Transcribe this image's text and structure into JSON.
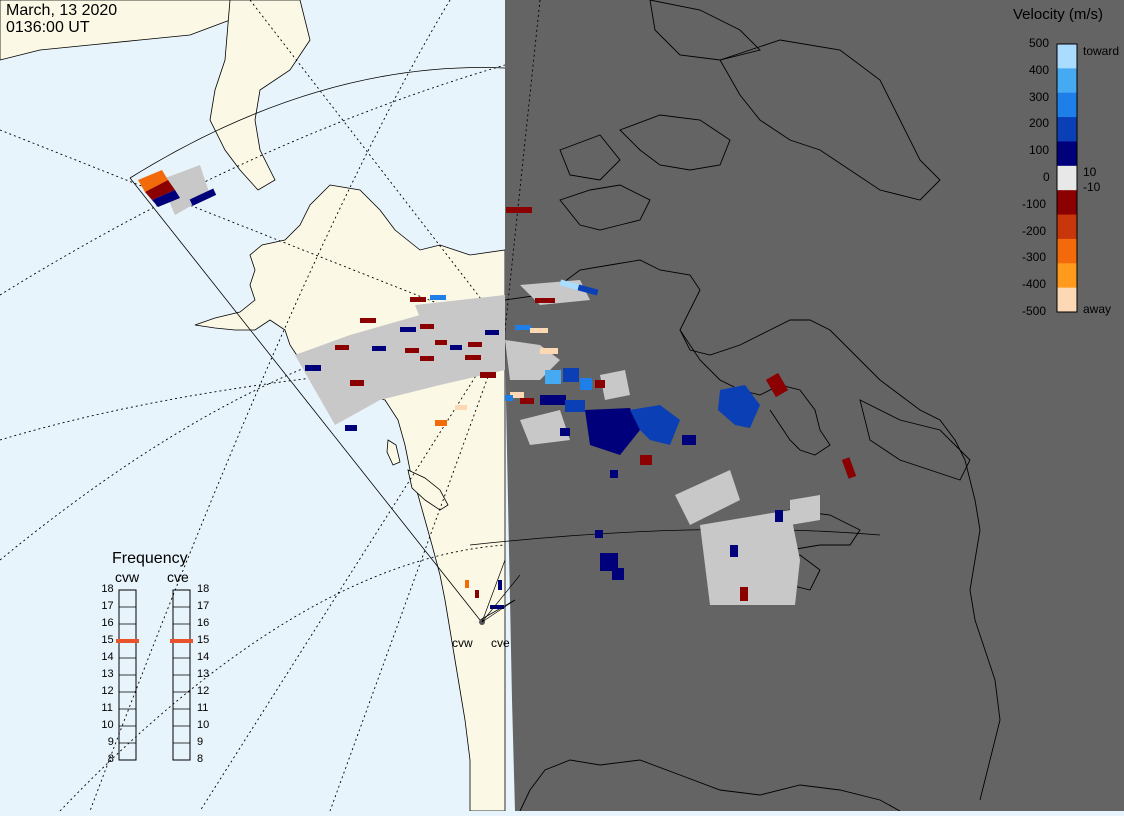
{
  "header": {
    "date": "March, 13 2020",
    "time": "0136:00 UT"
  },
  "colorbar": {
    "title": "Velocity (m/s)",
    "values": [
      "500",
      "400",
      "300",
      "200",
      "100",
      "0",
      "-100",
      "-200",
      "-300",
      "-400",
      "-500"
    ],
    "extra_labels": [
      "10",
      "-10"
    ],
    "toward_label": "toward",
    "away_label": "away",
    "colors": [
      "#fdd8b5",
      "#ff9a1c",
      "#f26a0a",
      "#c8360c",
      "#8b0000",
      "#e8e8e8",
      "#00007a",
      "#0a3fb5",
      "#1f7fe8",
      "#45aaf2",
      "#a9dcff"
    ]
  },
  "frequency": {
    "title": "Frequency",
    "radars": [
      {
        "name": "cvw",
        "value_mhz": 15
      },
      {
        "name": "cve",
        "value_mhz": 15
      }
    ],
    "ticks": [
      "18",
      "17",
      "16",
      "15",
      "14",
      "13",
      "12",
      "11",
      "10",
      "9",
      "8"
    ]
  },
  "sites": [
    "cvw",
    "cve"
  ],
  "map_colors": {
    "ocean": "#e8f4fb",
    "land": "#fbf8e6",
    "night": "#646464",
    "scatter": "#c8c8c8",
    "marker": "#e8532b"
  }
}
